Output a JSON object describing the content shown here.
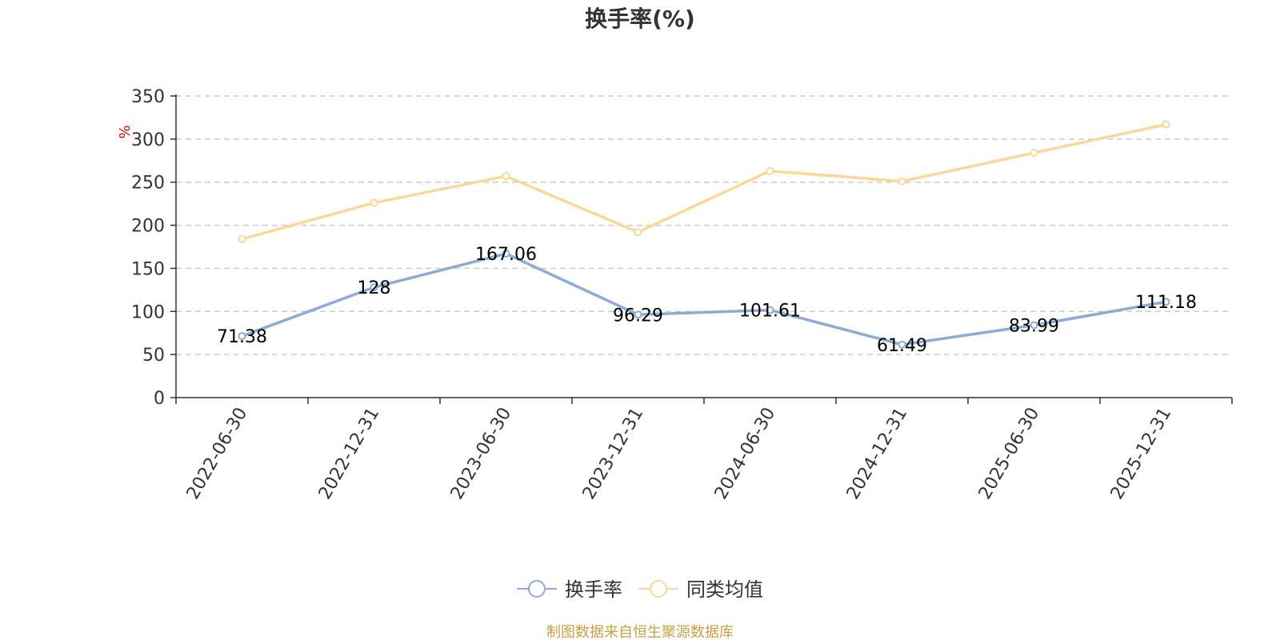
{
  "chart_data": {
    "type": "line",
    "title": "换手率(%)",
    "ylabel": "%",
    "xlabel": "",
    "ylim": [
      0,
      350
    ],
    "yticks": [
      0,
      50,
      100,
      150,
      200,
      250,
      300,
      350
    ],
    "categories": [
      "2022-06-30",
      "2022-12-31",
      "2023-06-30",
      "2023-12-31",
      "2024-06-30",
      "2024-12-31",
      "2025-06-30",
      "2025-12-31"
    ],
    "series": [
      {
        "name": "换手率",
        "color": "#8eaad6",
        "values": [
          71.38,
          128,
          167.06,
          96.29,
          101.61,
          61.49,
          83.99,
          111.18
        ],
        "labels": [
          "71.38",
          "128",
          "167.06",
          "96.29",
          "101.61",
          "61.49",
          "83.99",
          "111.18"
        ]
      },
      {
        "name": "同类均值",
        "color": "#fbd897",
        "values": [
          184,
          226,
          257,
          192,
          263,
          251,
          284,
          317
        ]
      }
    ],
    "grid": true,
    "legend_position": "bottom-center"
  },
  "source": {
    "text": "制图数据来自恒生聚源数据库",
    "color": "#c8a040"
  }
}
